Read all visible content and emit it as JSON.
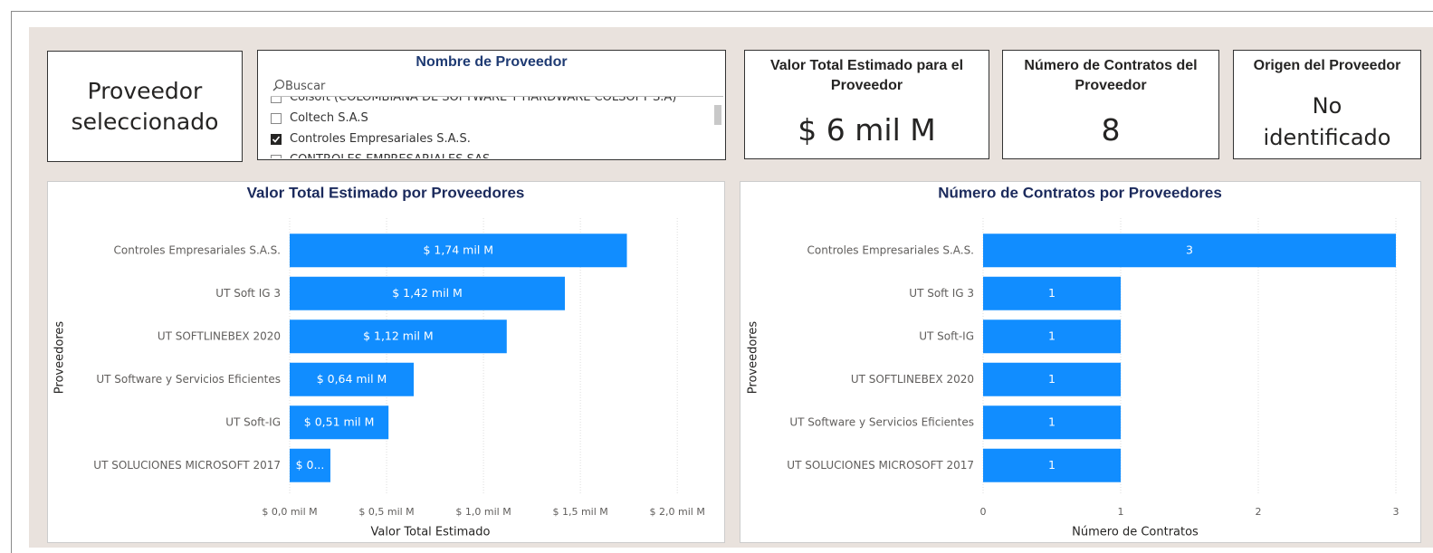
{
  "text_card": {
    "text": "Proveedor seleccionado"
  },
  "slicer": {
    "title": "Nombre de Proveedor",
    "search": "Buscar",
    "items": [
      {
        "label": "Colsoft (COLOMBIANA DE SOFTWARE Y HARDWARE COLSOFT S.A)",
        "checked": false
      },
      {
        "label": "Coltech S.A.S",
        "checked": false
      },
      {
        "label": "Controles Empresariales S.A.S.",
        "checked": true
      },
      {
        "label": "CONTROLES EMPRESARIALES SAS",
        "checked": false
      }
    ]
  },
  "cards": [
    {
      "title": "Valor Total Estimado para el Proveedor",
      "value": "$ 6 mil M"
    },
    {
      "title": "Número de Contratos del Proveedor",
      "value": "8"
    },
    {
      "title": "Origen del Proveedor",
      "value": "No identificado"
    }
  ],
  "chart_data": [
    {
      "type": "bar",
      "orientation": "horizontal",
      "title": "Valor Total Estimado por Proveedores",
      "y_label": "Proveedores",
      "x_label": "Valor Total Estimado",
      "categories": [
        "Controles Empresariales S.A.S.",
        "UT Soft IG 3",
        "UT SOFTLINEBEX 2020",
        "UT Software y Servicios Eficientes",
        "UT Soft-IG",
        "UT SOLUCIONES MICROSOFT 2017"
      ],
      "values": [
        1.74,
        1.42,
        1.12,
        0.64,
        0.51,
        0.21
      ],
      "value_labels": [
        "$ 1,74 mil M",
        "$ 1,42 mil M",
        "$ 1,12 mil M",
        "$ 0,64 mil M",
        "$ 0,51 mil M",
        "$ 0..."
      ],
      "color": "#118dff",
      "xlim": [
        0,
        2.2
      ],
      "xticks": [
        {
          "value": 0,
          "label": "$ 0,0 mil M"
        },
        {
          "value": 0.5,
          "label": "$ 0,5 mil M"
        },
        {
          "value": 1.0,
          "label": "$ 1,0 mil M"
        },
        {
          "value": 1.5,
          "label": "$ 1,5 mil M"
        },
        {
          "value": 2.0,
          "label": "$ 2,0 mil M"
        }
      ],
      "grid": true
    },
    {
      "type": "bar",
      "orientation": "horizontal",
      "title": "Número de Contratos por Proveedores",
      "y_label": "Proveedores",
      "x_label": "Número de Contratos",
      "categories": [
        "Controles Empresariales S.A.S.",
        "UT Soft IG 3",
        "UT Soft-IG",
        "UT SOFTLINEBEX 2020",
        "UT Software y Servicios Eficientes",
        "UT SOLUCIONES MICROSOFT 2017"
      ],
      "values": [
        3,
        1,
        1,
        1,
        1,
        1
      ],
      "color": "#118dff",
      "xlim": [
        0,
        3
      ],
      "xticks": [
        0,
        1,
        2,
        3
      ],
      "grid": true
    }
  ]
}
